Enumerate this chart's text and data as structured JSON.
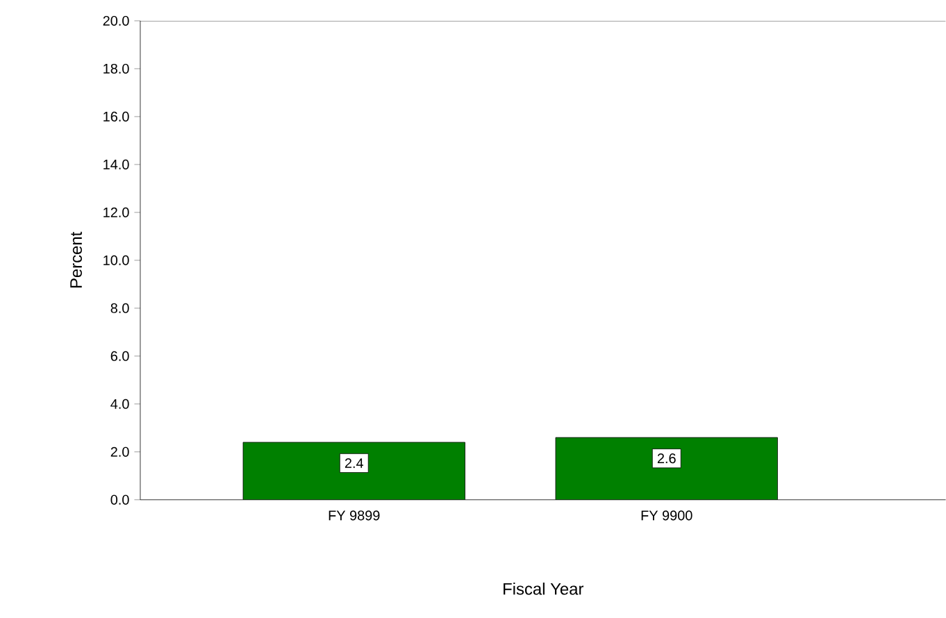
{
  "chart_data": {
    "type": "bar",
    "xlabel": "Fiscal Year",
    "ylabel": "Percent",
    "categories": [
      "FY 9899",
      "FY 9900"
    ],
    "values": [
      2.4,
      2.6
    ],
    "color": "#008000",
    "data_labels": true,
    "grid": false,
    "ylim": [
      0,
      20
    ],
    "yticks": [
      {
        "value": 0,
        "label": "0.0"
      },
      {
        "value": 2,
        "label": "2.0"
      },
      {
        "value": 4,
        "label": "4.0"
      },
      {
        "value": 6,
        "label": "6.0"
      },
      {
        "value": 8,
        "label": "8.0"
      },
      {
        "value": 10,
        "label": "10.0"
      },
      {
        "value": 12,
        "label": "12.0"
      },
      {
        "value": 14,
        "label": "14.0"
      },
      {
        "value": 16,
        "label": "16.0"
      },
      {
        "value": 18,
        "label": "18.0"
      },
      {
        "value": 20,
        "label": "20.0"
      }
    ]
  }
}
